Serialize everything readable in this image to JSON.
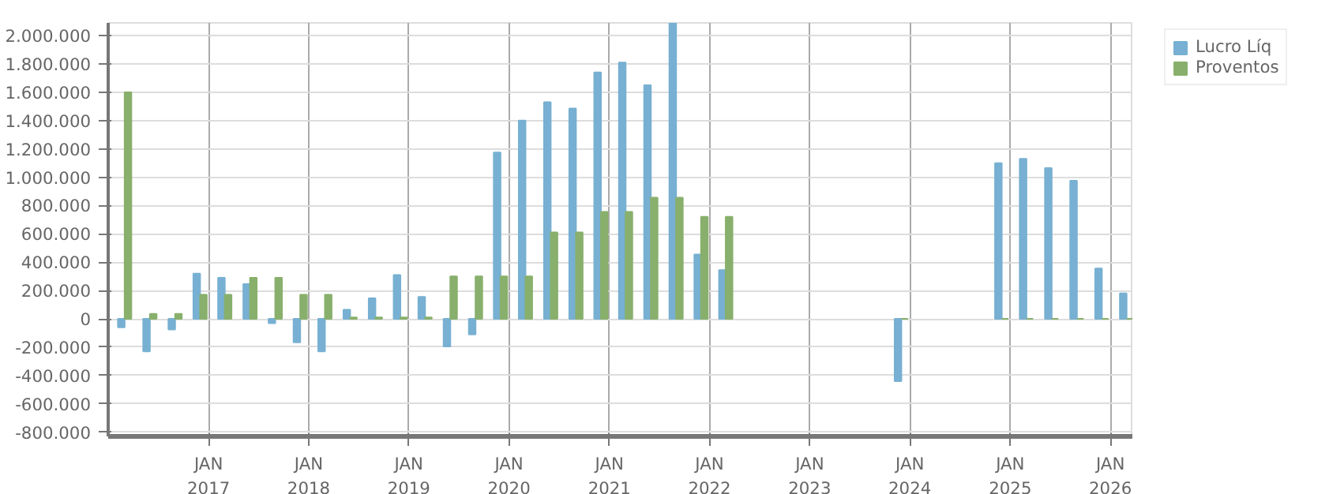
{
  "chart_data": {
    "type": "bar",
    "x": [
      "2016-03",
      "2016-06",
      "2016-09",
      "2016-12",
      "2017-03",
      "2017-06",
      "2017-09",
      "2017-12",
      "2018-03",
      "2018-06",
      "2018-09",
      "2018-12",
      "2019-03",
      "2019-06",
      "2019-09",
      "2019-12",
      "2020-03",
      "2020-06",
      "2020-09",
      "2020-12",
      "2021-03",
      "2021-06",
      "2021-09",
      "2021-12",
      "2022-03",
      "2022-06",
      "2022-09",
      "2022-12",
      "2023-03",
      "2023-06",
      "2023-09",
      "2023-12",
      "2024-03",
      "2024-06",
      "2024-09",
      "2024-12",
      "2025-03",
      "2025-06",
      "2025-09",
      "2025-12",
      "2026-03"
    ],
    "series": [
      {
        "name": "Lucro Líq",
        "color": "#77b0d2",
        "values": [
          -60000,
          -230000,
          -75000,
          320000,
          290000,
          245000,
          -30000,
          -165000,
          -230000,
          65000,
          145000,
          310000,
          155000,
          -195000,
          -110000,
          1175000,
          1400000,
          1530000,
          1485000,
          1740000,
          1810000,
          1650000,
          2090000,
          455000,
          345000,
          null,
          null,
          null,
          null,
          null,
          null,
          -440000,
          null,
          null,
          null,
          1100000,
          1130000,
          1065000,
          975000,
          355000,
          180000
        ]
      },
      {
        "name": "Proventos",
        "color": "#88b06c",
        "values": [
          1600000,
          35000,
          35000,
          170000,
          170000,
          290000,
          290000,
          170000,
          170000,
          10000,
          10000,
          10000,
          10000,
          300000,
          300000,
          300000,
          300000,
          610000,
          610000,
          755000,
          755000,
          855000,
          855000,
          720000,
          720000,
          null,
          null,
          null,
          null,
          null,
          null,
          0,
          null,
          null,
          null,
          0,
          0,
          0,
          0,
          0,
          0
        ]
      }
    ],
    "xlim": [
      "2016-01-01",
      "2026-03-25"
    ],
    "xticks": [
      {
        "value": "2017-01",
        "label": "JAN\n2017"
      },
      {
        "value": "2018-01",
        "label": "JAN\n2018"
      },
      {
        "value": "2019-01",
        "label": "JAN\n2019"
      },
      {
        "value": "2020-01",
        "label": "JAN\n2020"
      },
      {
        "value": "2021-01",
        "label": "JAN\n2021"
      },
      {
        "value": "2022-01",
        "label": "JAN\n2022"
      },
      {
        "value": "2023-01",
        "label": "JAN\n2023"
      },
      {
        "value": "2024-01",
        "label": "JAN\n2024"
      },
      {
        "value": "2025-01",
        "label": "JAN\n2025"
      },
      {
        "value": "2026-01",
        "label": "JAN\n2026"
      }
    ],
    "ylim": [
      -830000,
      2090000
    ],
    "yticks": [
      {
        "value": -800000,
        "label": "-800.000"
      },
      {
        "value": -600000,
        "label": "-600.000"
      },
      {
        "value": -400000,
        "label": "-400.000"
      },
      {
        "value": -200000,
        "label": "-200.000"
      },
      {
        "value": 0,
        "label": "0"
      },
      {
        "value": 200000,
        "label": "200.000"
      },
      {
        "value": 400000,
        "label": "400.000"
      },
      {
        "value": 600000,
        "label": "600.000"
      },
      {
        "value": 800000,
        "label": "800.000"
      },
      {
        "value": 1000000,
        "label": "1.000.000"
      },
      {
        "value": 1200000,
        "label": "1.200.000"
      },
      {
        "value": 1400000,
        "label": "1.400.000"
      },
      {
        "value": 1600000,
        "label": "1.600.000"
      },
      {
        "value": 1800000,
        "label": "1.800.000"
      },
      {
        "value": 2000000,
        "label": "2.000.000"
      }
    ],
    "grid": true,
    "legend": "right"
  }
}
